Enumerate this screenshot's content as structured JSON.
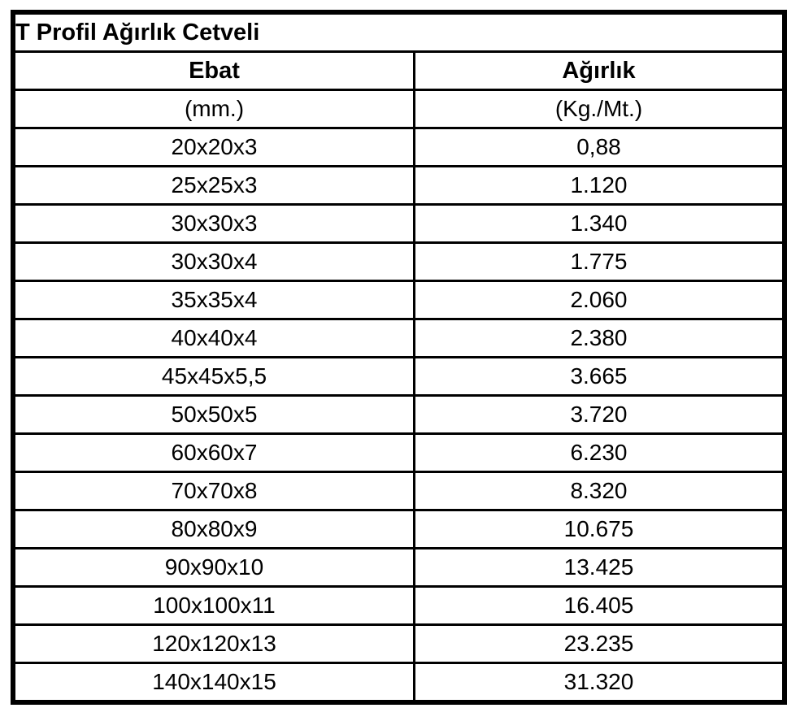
{
  "title": "T Profil Ağırlık Cetveli",
  "table": {
    "col1_header": "Ebat",
    "col2_header": "Ağırlık",
    "col1_unit": "(mm.)",
    "col2_unit": "(Kg./Mt.)"
  },
  "colors": {
    "border": "#000000",
    "background": "#ffffff",
    "text": "#000000"
  },
  "chart_data": {
    "type": "table",
    "title": "T Profil Ağırlık Cetveli",
    "columns": [
      "Ebat (mm.)",
      "Ağırlık (Kg./Mt.)"
    ],
    "rows": [
      [
        "20x20x3",
        "0,88"
      ],
      [
        "25x25x3",
        "1.120"
      ],
      [
        "30x30x3",
        "1.340"
      ],
      [
        "30x30x4",
        "1.775"
      ],
      [
        "35x35x4",
        "2.060"
      ],
      [
        "40x40x4",
        "2.380"
      ],
      [
        "45x45x5,5",
        "3.665"
      ],
      [
        "50x50x5",
        "3.720"
      ],
      [
        "60x60x7",
        "6.230"
      ],
      [
        "70x70x8",
        "8.320"
      ],
      [
        "80x80x9",
        "10.675"
      ],
      [
        "90x90x10",
        "13.425"
      ],
      [
        "100x100x11",
        "16.405"
      ],
      [
        "120x120x13",
        "23.235"
      ],
      [
        "140x140x15",
        "31.320"
      ]
    ]
  }
}
